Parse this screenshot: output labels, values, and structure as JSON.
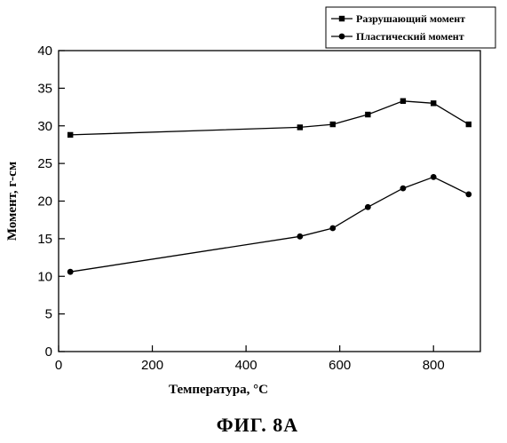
{
  "chart_data": {
    "type": "line",
    "title": "",
    "xlabel": "Температура, °C",
    "ylabel": "Момент, г-см",
    "xlim": [
      0,
      900
    ],
    "ylim": [
      0,
      40
    ],
    "xticks": [
      0,
      200,
      400,
      600,
      800
    ],
    "yticks": [
      0,
      5,
      10,
      15,
      20,
      25,
      30,
      35,
      40
    ],
    "grid": false,
    "legend_position": "top-right",
    "series": [
      {
        "name": "Разрушающий момент",
        "marker": "square",
        "x": [
          25,
          515,
          585,
          660,
          735,
          800,
          875
        ],
        "y": [
          28.8,
          29.8,
          30.2,
          31.5,
          33.3,
          33.0,
          30.2
        ]
      },
      {
        "name": "Пластический момент",
        "marker": "circle",
        "x": [
          25,
          515,
          585,
          660,
          735,
          800,
          875
        ],
        "y": [
          10.6,
          15.3,
          16.4,
          19.2,
          21.7,
          23.2,
          20.9
        ]
      }
    ]
  },
  "caption": "ФИГ. 8А"
}
